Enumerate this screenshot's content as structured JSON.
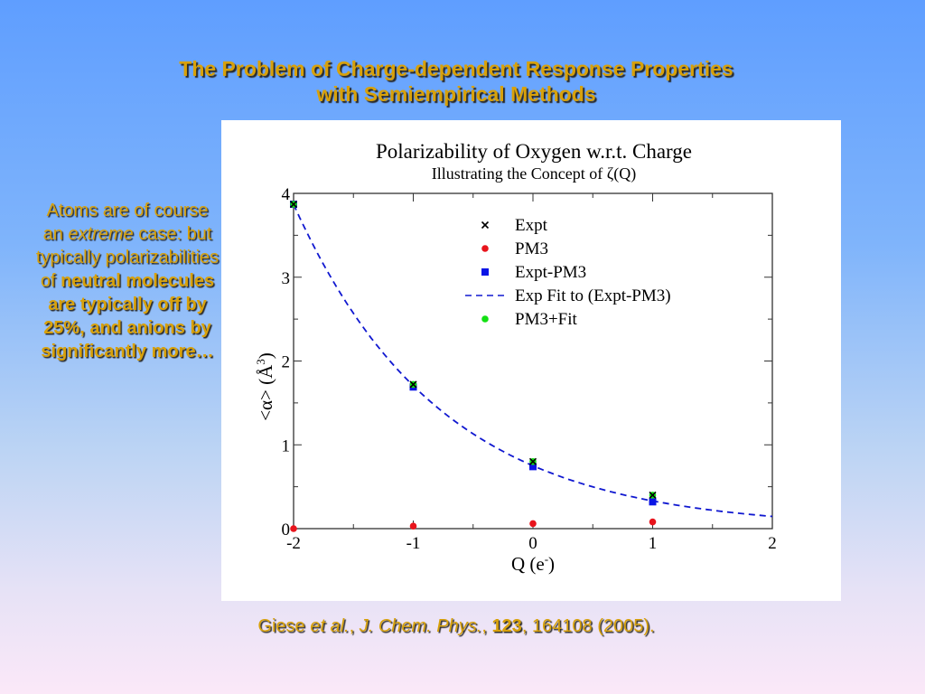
{
  "slide": {
    "title_line1": "The Problem of Charge-dependent Response Properties",
    "title_line2": "with Semiempirical Methods",
    "side_text": {
      "part1": "Atoms are of course an",
      "italic": "extreme",
      "part2": " case:",
      "part3": "but typically polarizabilities of",
      "bold": "neutral molecules are typically off by 25%, and anions by significantly more…"
    },
    "citation": {
      "author": "Giese ",
      "etal": "et al.",
      "sep1": ", ",
      "journal": "J. Chem. Phys.",
      "sep2": ", ",
      "volume": "123",
      "rest": ", 164108 (2005)."
    },
    "colors": {
      "text_gold": "#d8a10a",
      "bg_top": "#5f9eff",
      "bg_bottom": "#fbe8f8"
    }
  },
  "chart_data": {
    "type": "scatter",
    "title": "Polarizability of Oxygen w.r.t. Charge",
    "subtitle": "Illustrating the Concept of ζ(Q)",
    "xlabel": "Q (e",
    "xlabel_sup": "-",
    "xlabel_close": ")",
    "ylabel": "<α>  (Å",
    "ylabel_sup": "3",
    "ylabel_close": ")",
    "xlim": [
      -2,
      2
    ],
    "ylim": [
      0,
      4
    ],
    "xticks": [
      -2,
      -1,
      0,
      1,
      2
    ],
    "xtick_labels": [
      "-2",
      "-1",
      "0",
      "1",
      "2"
    ],
    "yticks": [
      0,
      1,
      2,
      3,
      4
    ],
    "ytick_labels": [
      "0",
      "1",
      "2",
      "3",
      "4"
    ],
    "grid": false,
    "legend_position": "top-right",
    "series": [
      {
        "name": "Expt",
        "marker": "x",
        "color": "#000000",
        "x": [
          -2,
          -1,
          0,
          1
        ],
        "y": [
          3.87,
          1.72,
          0.8,
          0.4
        ]
      },
      {
        "name": "PM3",
        "marker": "circle",
        "color": "#e8141c",
        "x": [
          -2,
          -1,
          0,
          1
        ],
        "y": [
          0.0,
          0.03,
          0.06,
          0.08
        ]
      },
      {
        "name": "Expt-PM3",
        "marker": "square",
        "color": "#0a14e6",
        "x": [
          -2,
          -1,
          0,
          1
        ],
        "y": [
          3.87,
          1.69,
          0.74,
          0.32
        ]
      },
      {
        "name": "Exp Fit to (Expt-PM3)",
        "marker": "dashed-line",
        "color": "#1018d0",
        "fit": {
          "a": 3.87,
          "b": 0.82,
          "x0": -2
        }
      },
      {
        "name": "PM3+Fit",
        "marker": "circle",
        "color": "#12e012",
        "x": [
          -2,
          -1,
          0,
          1
        ],
        "y": [
          3.87,
          1.72,
          0.8,
          0.4
        ]
      }
    ]
  }
}
